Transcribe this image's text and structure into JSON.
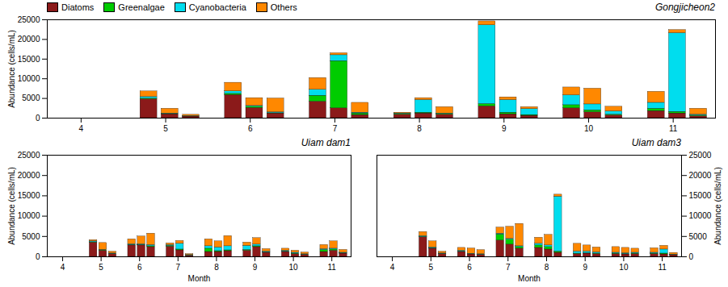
{
  "chart_data": [
    {
      "type": "bar",
      "stacked": true,
      "title": "Gongjicheon2",
      "x": [
        4.8,
        5.05,
        5.3,
        5.8,
        6.05,
        6.3,
        6.8,
        7.05,
        7.3,
        7.8,
        8.05,
        8.3,
        8.8,
        9.05,
        9.3,
        9.8,
        10.05,
        10.3,
        10.8,
        11.05,
        11.3
      ],
      "series": [
        {
          "name": "Diatoms",
          "color": "#8B1A1A",
          "values": [
            4800,
            1000,
            400,
            5900,
            2600,
            1200,
            4200,
            2500,
            800,
            900,
            1200,
            900,
            3000,
            1000,
            600,
            2500,
            1500,
            700,
            1800,
            1200,
            500
          ]
        },
        {
          "name": "Greenalgae",
          "color": "#00CC00",
          "values": [
            200,
            100,
            50,
            300,
            300,
            100,
            1500,
            12000,
            400,
            200,
            200,
            200,
            600,
            400,
            200,
            800,
            500,
            200,
            600,
            400,
            200
          ]
        },
        {
          "name": "Cyanobacteria",
          "color": "#00DDEE",
          "values": [
            400,
            100,
            100,
            600,
            200,
            200,
            1500,
            1500,
            200,
            100,
            3200,
            100,
            20000,
            3200,
            1500,
            2500,
            1500,
            800,
            1500,
            20000,
            200
          ]
        },
        {
          "name": "Others",
          "color": "#FF8800",
          "values": [
            1400,
            1200,
            300,
            2200,
            2000,
            3500,
            3000,
            500,
            2500,
            200,
            500,
            1600,
            1000,
            700,
            500,
            2000,
            4000,
            1200,
            2800,
            800,
            1500
          ]
        }
      ],
      "xlim": [
        3.6,
        11.5
      ],
      "xticks": [
        4,
        5,
        6,
        7,
        8,
        9,
        10,
        11
      ],
      "ylim": [
        0,
        25000
      ],
      "yticks": [
        0,
        5000,
        10000,
        15000,
        20000,
        25000
      ],
      "ylabel": "Abundance (cells/mL)",
      "legend": "upper left"
    },
    {
      "type": "bar",
      "stacked": true,
      "title": "Uiam dam1",
      "x": [
        4.8,
        5.05,
        5.3,
        5.8,
        6.05,
        6.3,
        6.8,
        7.05,
        7.3,
        7.8,
        8.05,
        8.3,
        8.8,
        9.05,
        9.3,
        9.8,
        10.05,
        10.3,
        10.8,
        11.05,
        11.3
      ],
      "series": [
        {
          "name": "Diatoms",
          "color": "#8B1A1A",
          "values": [
            3500,
            1500,
            700,
            2800,
            2800,
            2400,
            2500,
            1600,
            300,
            1200,
            1200,
            1400,
            1500,
            2400,
            1000,
            1200,
            700,
            500,
            1200,
            1500,
            800
          ]
        },
        {
          "name": "Greenalgae",
          "color": "#00CC00",
          "values": [
            100,
            100,
            50,
            100,
            100,
            200,
            200,
            200,
            50,
            800,
            200,
            200,
            200,
            200,
            100,
            100,
            100,
            50,
            500,
            300,
            100
          ]
        },
        {
          "name": "Cyanobacteria",
          "color": "#00DDEE",
          "values": [
            200,
            100,
            100,
            200,
            200,
            300,
            200,
            1400,
            100,
            600,
            900,
            1000,
            1000,
            400,
            200,
            200,
            200,
            100,
            200,
            200,
            100
          ]
        },
        {
          "name": "Others",
          "color": "#FF8800",
          "values": [
            300,
            1700,
            400,
            1200,
            1900,
            2800,
            400,
            700,
            200,
            1700,
            1500,
            2500,
            800,
            1600,
            600,
            500,
            500,
            400,
            1000,
            1800,
            700
          ]
        }
      ],
      "xlim": [
        3.6,
        11.5
      ],
      "xticks": [
        4,
        5,
        6,
        7,
        8,
        9,
        10,
        11
      ],
      "ylim": [
        0,
        25000
      ],
      "yticks": [
        0,
        5000,
        10000,
        15000,
        20000,
        25000
      ],
      "xlabel": "Month",
      "ylabel": "Abundance (cells/mL)"
    },
    {
      "type": "bar",
      "stacked": true,
      "title": "Uiam dam3",
      "x": [
        4.8,
        5.05,
        5.3,
        5.8,
        6.05,
        6.3,
        6.8,
        7.05,
        7.3,
        7.8,
        8.05,
        8.3,
        8.8,
        9.05,
        9.3,
        9.8,
        10.05,
        10.3,
        10.8,
        11.05,
        11.3
      ],
      "series": [
        {
          "name": "Diatoms",
          "color": "#8B1A1A",
          "values": [
            4800,
            2000,
            700,
            1200,
            600,
            500,
            4000,
            3000,
            2000,
            2200,
            1800,
            1000,
            700,
            800,
            700,
            700,
            600,
            700,
            700,
            600,
            400
          ]
        },
        {
          "name": "Greenalgae",
          "color": "#00CC00",
          "values": [
            100,
            100,
            50,
            100,
            50,
            50,
            1500,
            1200,
            400,
            600,
            600,
            300,
            100,
            100,
            100,
            100,
            100,
            100,
            100,
            200,
            50
          ]
        },
        {
          "name": "Cyanobacteria",
          "color": "#00DDEE",
          "values": [
            200,
            200,
            100,
            200,
            100,
            100,
            200,
            200,
            200,
            400,
            400,
            13500,
            500,
            400,
            300,
            200,
            200,
            200,
            200,
            1000,
            100
          ]
        },
        {
          "name": "Others",
          "color": "#FF8800",
          "values": [
            1000,
            1500,
            400,
            700,
            1300,
            1000,
            1500,
            3000,
            5500,
            1500,
            2600,
            500,
            1900,
            1500,
            1200,
            1400,
            1300,
            1000,
            1100,
            900,
            400
          ]
        }
      ],
      "xlim": [
        3.6,
        11.5
      ],
      "xticks": [
        4,
        5,
        6,
        7,
        8,
        9,
        10,
        11
      ],
      "ylim": [
        0,
        25000
      ],
      "yticks": [
        0,
        5000,
        10000,
        15000,
        20000,
        25000
      ],
      "xlabel": "Month",
      "ylabel": "Abundance (cells/mL)"
    }
  ]
}
